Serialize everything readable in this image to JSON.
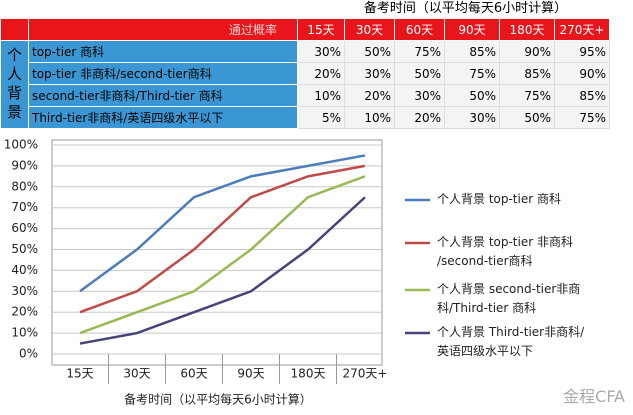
{
  "table": {
    "title": "备考时间（以平均每天6小时计算）",
    "header": [
      "通过概率",
      "15天",
      "30天",
      "60天",
      "90天",
      "180天",
      "270天+"
    ],
    "row_header": "个人背景",
    "rows": [
      [
        "top-tier 商科",
        "30%",
        "50%",
        "75%",
        "85%",
        "90%",
        "95%"
      ],
      [
        "top-tier 非商科/second-tier商科",
        "20%",
        "30%",
        "50%",
        "75%",
        "85%",
        "90%"
      ],
      [
        "second-tier非商科/Third-tier 商科",
        "10%",
        "20%",
        "30%",
        "50%",
        "75%",
        "85%"
      ],
      [
        "Third-tier非商科/英语四级水平以下",
        "5%",
        "10%",
        "20%",
        "30%",
        "50%",
        "75%"
      ]
    ]
  },
  "chart_data": {
    "type": "line",
    "x_label": "备考时间（以平均每天6小时计算）",
    "categories": [
      "15天",
      "30天",
      "60天",
      "90天",
      "180天",
      "270天+"
    ],
    "series": [
      {
        "name": "个人背景 top-tier 商科",
        "color": "#4a7ebb",
        "values": [
          30,
          50,
          75,
          85,
          90,
          95
        ]
      },
      {
        "name": "个人背景 top-tier 非商科\n/second-tier商科",
        "color": "#be4b48",
        "values": [
          20,
          30,
          50,
          75,
          85,
          90
        ]
      },
      {
        "name": "个人背景 second-tier非商\n科/Third-tier 商科",
        "color": "#98b954",
        "values": [
          10,
          20,
          30,
          50,
          75,
          85
        ]
      },
      {
        "name": "个人背景 Third-tier非商科/\n英语四级水平以下",
        "color": "#46437a",
        "values": [
          5,
          10,
          20,
          30,
          50,
          75
        ]
      }
    ],
    "ylim": [
      0,
      100
    ],
    "yticks": [
      {
        "value": 0,
        "label": "0%"
      },
      {
        "value": 10,
        "label": "10%"
      },
      {
        "value": 20,
        "label": "20%"
      },
      {
        "value": 30,
        "label": "30%"
      },
      {
        "value": 40,
        "label": "40%"
      },
      {
        "value": 50,
        "label": "50%"
      },
      {
        "value": 60,
        "label": "60%"
      },
      {
        "value": 70,
        "label": "70%"
      },
      {
        "value": 80,
        "label": "80%"
      },
      {
        "value": 90,
        "label": "90%"
      },
      {
        "value": 100,
        "label": "100%"
      }
    ],
    "grid": true
  },
  "watermark": "金程CFA"
}
